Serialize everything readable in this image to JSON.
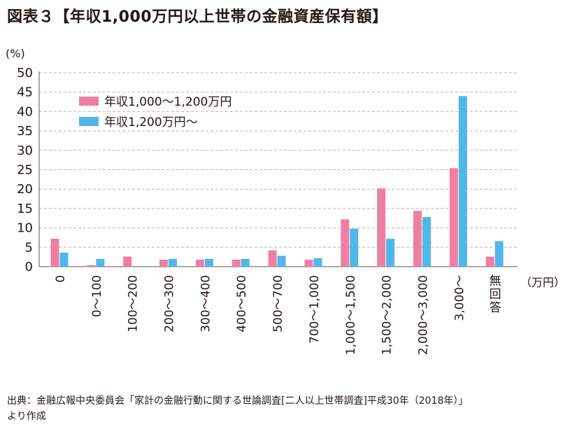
{
  "title": "図表３【年収1,000万円以上世帯の金融資産保有額】",
  "source_line1": "出典：金融広報中央委員会「家計の金融行動に関する世論調査[二人以上世帯調査]平成30年（2018年）」",
  "source_line2": "より作成",
  "chart_data": {
    "type": "bar",
    "title": "図表３【年収1,000万円以上世帯の金融資産保有額】",
    "ylabel": "(%)",
    "xlabel": "（万円）",
    "ylim": [
      0,
      50
    ],
    "yticks": [
      0,
      5,
      10,
      15,
      20,
      25,
      30,
      35,
      40,
      45,
      50
    ],
    "grid": true,
    "legend_position": "top-left",
    "categories": [
      "0",
      "0～100",
      "100～200",
      "200～300",
      "300～400",
      "400～500",
      "500～700",
      "700～1,000",
      "1,000～1,500",
      "1,500～2,000",
      "2,000～3,000",
      "3,000～",
      "無回答"
    ],
    "series": [
      {
        "name": "年収1,000～1,200万円",
        "color": "#EE7FA3",
        "values": [
          7.2,
          0.4,
          2.6,
          1.8,
          1.8,
          1.8,
          4.2,
          1.8,
          12.2,
          20.2,
          14.4,
          25.4,
          2.6
        ]
      },
      {
        "name": "年収1,200万円～",
        "color": "#4FB8E8",
        "values": [
          3.6,
          2.0,
          0.0,
          2.0,
          2.0,
          2.0,
          2.8,
          2.2,
          9.8,
          7.2,
          12.8,
          44.0,
          6.6
        ]
      }
    ]
  }
}
